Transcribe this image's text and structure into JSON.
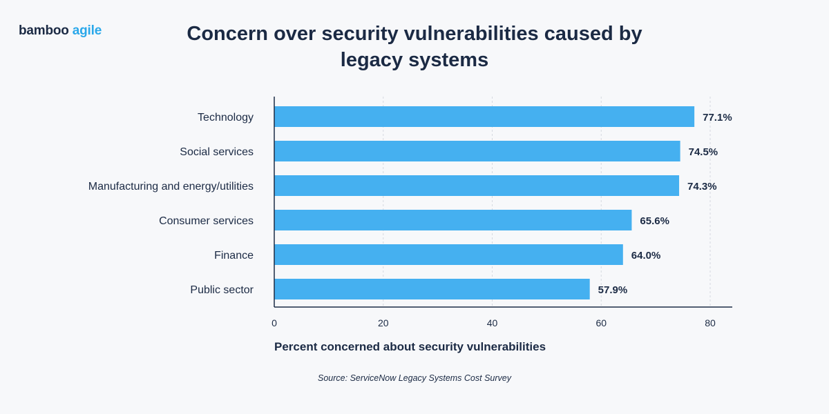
{
  "logo": {
    "part1": "bamboo",
    "part2": "agile"
  },
  "colors": {
    "bar": "#45b0f0",
    "text": "#1b2a44",
    "accent": "#2aa8ea",
    "background": "#f7f8fa"
  },
  "source": "Source: ServiceNow Legacy Systems Cost Survey",
  "chart_data": {
    "type": "bar",
    "orientation": "horizontal",
    "title": "Concern over security vulnerabilities caused by legacy systems",
    "xlabel": "Percent concerned about security vulnerabilities",
    "ylabel": "",
    "categories": [
      "Technology",
      "Social services",
      "Manufacturing and energy/utilities",
      "Consumer services",
      "Finance",
      "Public sector"
    ],
    "values": [
      77.1,
      74.5,
      74.3,
      65.6,
      64.0,
      57.9
    ],
    "value_labels": [
      "77.1%",
      "74.5%",
      "74.3%",
      "65.6%",
      "64.0%",
      "57.9%"
    ],
    "xticks": [
      0,
      20,
      40,
      60,
      80
    ],
    "xtick_labels": [
      "0",
      "20",
      "40",
      "60",
      "80"
    ],
    "xlim": [
      0,
      84
    ],
    "grid": "vertical dashed",
    "legend": "none"
  }
}
